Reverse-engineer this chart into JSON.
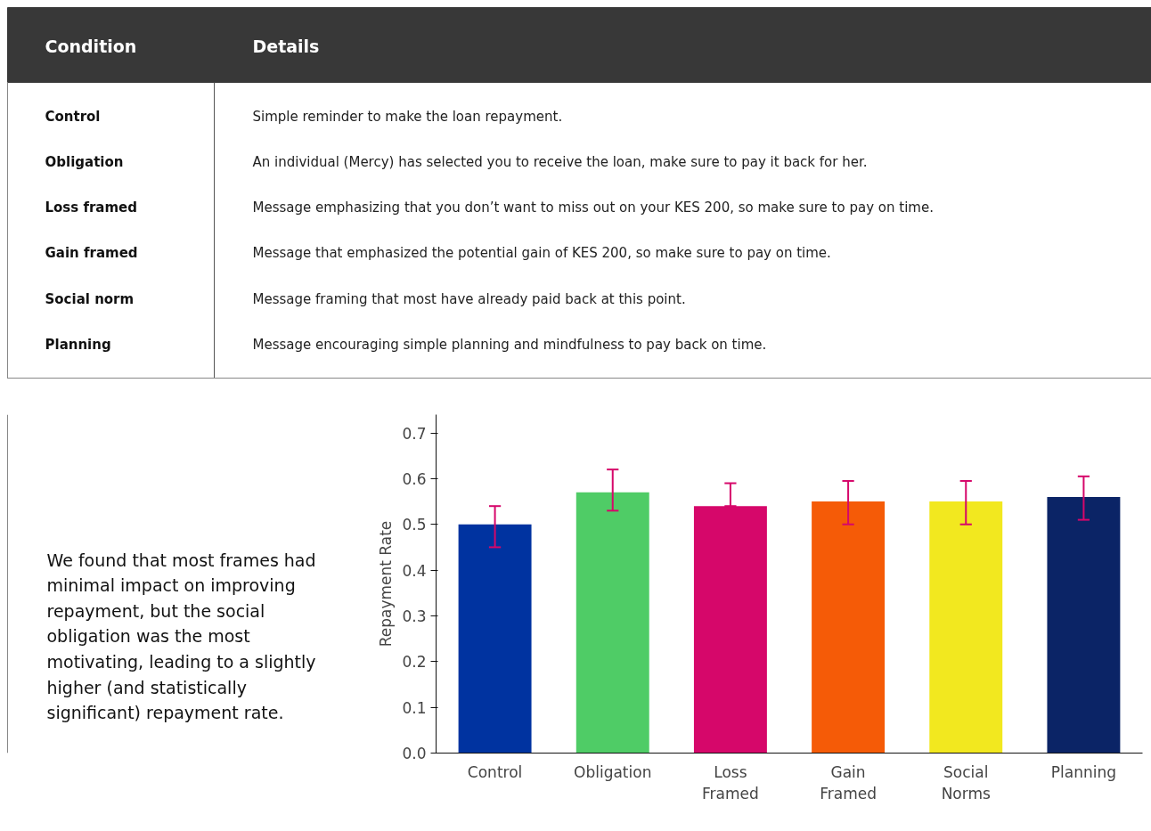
{
  "chart_data": {
    "type": "bar",
    "ylabel": "Repayment Rate",
    "categories": [
      "Control",
      "Obligation",
      "Loss Framed",
      "Gain Framed",
      "Social Norms",
      "Planning"
    ],
    "values": [
      0.5,
      0.57,
      0.54,
      0.55,
      0.55,
      0.56
    ],
    "colors": [
      "#0033a0",
      "#4fcc66",
      "#d6076a",
      "#f55b07",
      "#f2e81f",
      "#0b2466"
    ],
    "errors": [
      [
        0.45,
        0.54
      ],
      [
        0.53,
        0.62
      ],
      [
        0.54,
        0.59
      ],
      [
        0.5,
        0.595
      ],
      [
        0.5,
        0.595
      ],
      [
        0.51,
        0.605
      ]
    ],
    "ylim": [
      0,
      0.74
    ],
    "yticks": [
      {
        "value": 0,
        "label": "0.0"
      },
      0.1,
      0.2,
      0.3,
      0.4,
      0.5,
      0.6,
      0.7
    ],
    "grid": false,
    "annotations": [
      "Condition",
      "Details",
      "Control",
      "Simple reminder to make the loan repayment.",
      "Obligation",
      "An individual (Mercy) has selected you to receive the loan, make sure to pay it back for her.",
      "Loss framed",
      "Message emphasizing that you don’t want to miss out on your KES 200, so make sure to pay on time.",
      "Gain framed",
      "Message that emphasized the potential gain of KES 200, so make sure to pay on time.",
      "Social norm",
      "Message framing that most have already paid back at this point.",
      "Planning",
      "Message encouraging simple planning and mindfulness to pay back on time.",
      "We found that most frames had minimal impact on improving repayment, but the social obligation was the most motivating, leading to a slightly higher (and statistically significant) repayment rate."
    ]
  }
}
